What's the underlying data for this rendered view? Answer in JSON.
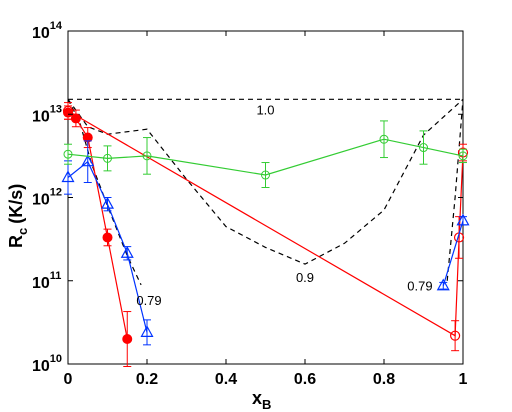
{
  "chart_data": {
    "type": "line",
    "title": "",
    "xlabel": "x",
    "xlabel_sub": "B",
    "ylabel": "R",
    "ylabel_sub": "c",
    "ylabel_unit": "(K/s)",
    "xlim": [
      0,
      1
    ],
    "ylim": [
      10,
      14
    ],
    "y_scale": "log",
    "grid": false,
    "legend": "none",
    "x_ticks": [
      "0",
      "0.2",
      "0.4",
      "0.6",
      "0.8",
      "1"
    ],
    "y_ticks": [
      {
        "base": "10",
        "exp": "10"
      },
      {
        "base": "10",
        "exp": "11"
      },
      {
        "base": "10",
        "exp": "12"
      },
      {
        "base": "10",
        "exp": "13"
      },
      {
        "base": "10",
        "exp": "14"
      }
    ],
    "series": [
      {
        "color": "#ff0000",
        "marker": "circle-filled",
        "points": [
          [
            0.0,
            13.02,
            0.08
          ],
          [
            0.02,
            12.95,
            0.1
          ],
          [
            0.05,
            12.72,
            0.12
          ],
          [
            0.1,
            11.52,
            0.1
          ],
          [
            0.15,
            10.3,
            0.33
          ]
        ]
      },
      {
        "color": "#ff0000",
        "marker": "circle-open",
        "points": [
          [
            0.0,
            13.04,
            0.1
          ],
          [
            0.98,
            10.34,
            0.18
          ],
          [
            0.99,
            11.52,
            0.25
          ],
          [
            1.0,
            12.54,
            0.1
          ]
        ]
      },
      {
        "color": "#0033ff",
        "marker": "triangle",
        "points": [
          [
            0.0,
            12.24,
            0.2
          ],
          [
            0.05,
            12.43,
            0.25
          ],
          [
            0.1,
            11.92,
            0.08
          ],
          [
            0.15,
            11.33,
            0.08
          ],
          [
            0.2,
            10.38,
            0.15
          ]
        ]
      },
      {
        "color": "#0033ff",
        "marker": "triangle",
        "points": [
          [
            0.95,
            10.94,
            0.04
          ],
          [
            1.0,
            11.72,
            0.05
          ]
        ]
      },
      {
        "color": "#33cc33",
        "marker": "diamond-open",
        "points": [
          [
            0.0,
            12.52,
            0.12
          ],
          [
            0.1,
            12.47,
            0.15
          ],
          [
            0.2,
            12.5,
            0.22
          ],
          [
            0.5,
            12.27,
            0.15
          ],
          [
            0.8,
            12.7,
            0.22
          ],
          [
            0.9,
            12.6,
            0.2
          ],
          [
            1.0,
            12.5,
            0.08
          ]
        ]
      }
    ],
    "contours": [
      {
        "label": "1.0",
        "points": [
          [
            0.0,
            13.18
          ],
          [
            1.0,
            13.18
          ]
        ]
      },
      {
        "label": "0.9",
        "points": [
          [
            0.0,
            13.18
          ],
          [
            0.05,
            12.85
          ],
          [
            0.1,
            12.76
          ],
          [
            0.2,
            12.82
          ],
          [
            0.3,
            12.22
          ],
          [
            0.4,
            11.65
          ],
          [
            0.5,
            11.4
          ],
          [
            0.6,
            11.2
          ],
          [
            0.7,
            11.45
          ],
          [
            0.8,
            11.85
          ],
          [
            0.9,
            12.75
          ],
          [
            1.0,
            13.18
          ]
        ]
      },
      {
        "label": "0.79",
        "points": [
          [
            0.0,
            13.18
          ],
          [
            0.03,
            12.9
          ],
          [
            0.06,
            12.4
          ],
          [
            0.1,
            11.9
          ],
          [
            0.15,
            11.3
          ],
          [
            0.185,
            10.95
          ]
        ]
      },
      {
        "label": "0.79",
        "points": [
          [
            0.96,
            11.0
          ],
          [
            0.98,
            12.0
          ],
          [
            1.0,
            13.18
          ]
        ]
      }
    ],
    "annotations": [
      {
        "text": "1.0",
        "x": 0.5,
        "y": 13.18
      },
      {
        "text": "0.79",
        "x": 0.2,
        "y": 10.95
      },
      {
        "text": "0.9",
        "x": 0.6,
        "y": 11.2
      },
      {
        "text": "0.79",
        "x": 0.95,
        "y": 10.94
      }
    ]
  }
}
